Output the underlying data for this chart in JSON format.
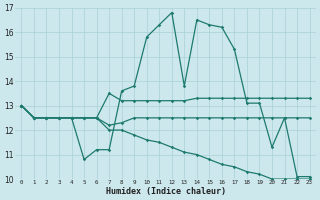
{
  "xlabel": "Humidex (Indice chaleur)",
  "bg_color": "#cce8ed",
  "grid_color": "#aad0d8",
  "line_color": "#1e7a6e",
  "xlim": [
    -0.5,
    23.5
  ],
  "ylim": [
    10,
    17
  ],
  "yticks": [
    10,
    11,
    12,
    13,
    14,
    15,
    16,
    17
  ],
  "xticks": [
    0,
    1,
    2,
    3,
    4,
    5,
    6,
    7,
    8,
    9,
    10,
    11,
    12,
    13,
    14,
    15,
    16,
    17,
    18,
    19,
    20,
    21,
    22,
    23
  ],
  "series1": [
    13.0,
    12.5,
    12.5,
    12.5,
    12.5,
    10.8,
    11.2,
    11.2,
    13.6,
    13.8,
    15.8,
    16.3,
    16.8,
    13.8,
    16.5,
    16.3,
    16.2,
    15.3,
    13.1,
    13.1,
    11.3,
    12.5,
    10.1,
    10.1
  ],
  "series2": [
    13.0,
    12.5,
    12.5,
    12.5,
    12.5,
    12.5,
    12.5,
    13.5,
    13.2,
    13.2,
    13.2,
    13.2,
    13.2,
    13.2,
    13.3,
    13.3,
    13.3,
    13.3,
    13.3,
    13.3,
    13.3,
    13.3,
    13.3,
    13.3
  ],
  "series3": [
    13.0,
    12.5,
    12.5,
    12.5,
    12.5,
    12.5,
    12.5,
    12.0,
    12.0,
    11.8,
    11.6,
    11.5,
    11.3,
    11.1,
    11.0,
    10.8,
    10.6,
    10.5,
    10.3,
    10.2,
    10.0,
    10.0,
    10.0,
    10.0
  ],
  "series4": [
    13.0,
    12.5,
    12.5,
    12.5,
    12.5,
    12.5,
    12.5,
    12.2,
    12.3,
    12.5,
    12.5,
    12.5,
    12.5,
    12.5,
    12.5,
    12.5,
    12.5,
    12.5,
    12.5,
    12.5,
    12.5,
    12.5,
    12.5,
    12.5
  ]
}
